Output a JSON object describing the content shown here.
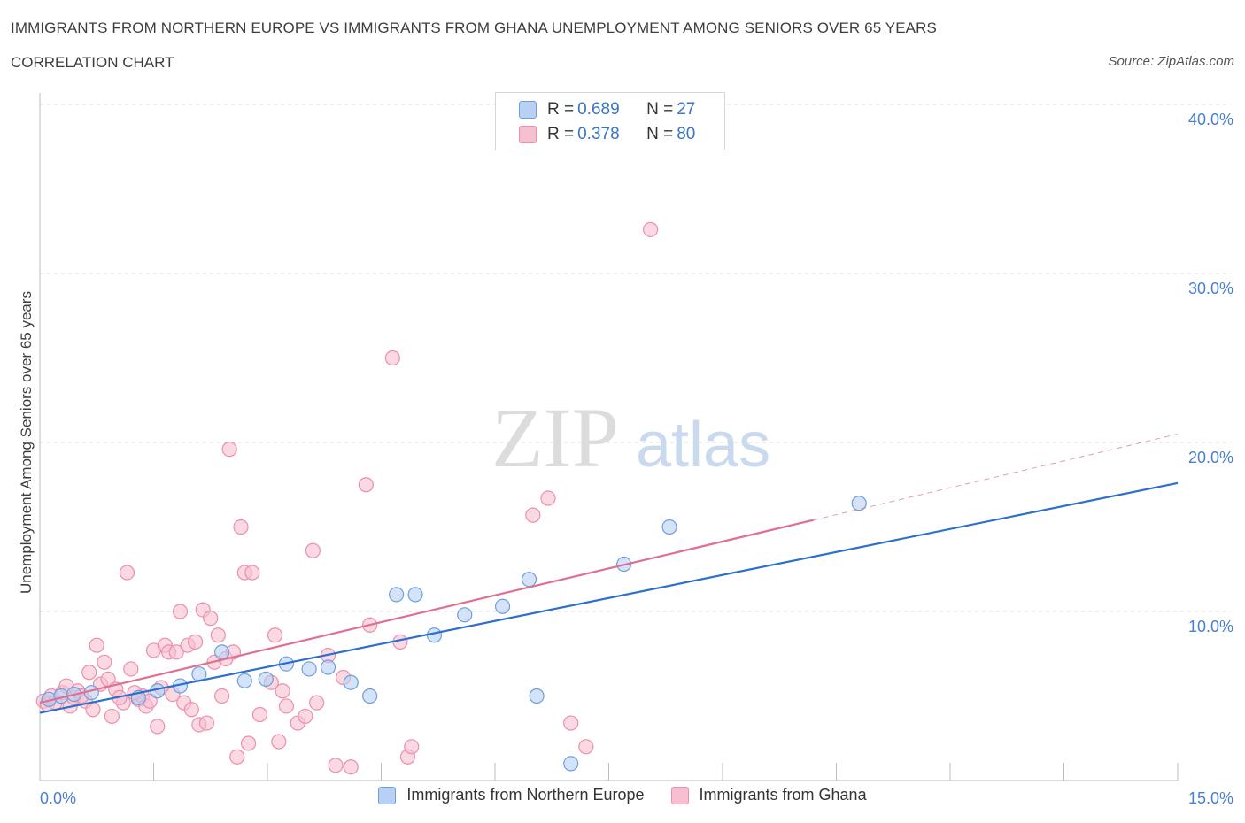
{
  "header": {
    "title": "IMMIGRANTS FROM NORTHERN EUROPE VS IMMIGRANTS FROM GHANA UNEMPLOYMENT AMONG SENIORS OVER 65 YEARS",
    "subtitle": "CORRELATION CHART",
    "source": "Source: ZipAtlas.com"
  },
  "watermark": {
    "zip": "ZIP",
    "atlas": "atlas"
  },
  "legend": {
    "blue": {
      "r_label": "R = ",
      "r_value": "0.689",
      "n_label": "N = ",
      "n_value": "27"
    },
    "pink": {
      "r_label": "R = ",
      "r_value": "0.378",
      "n_label": "N = ",
      "n_value": "80"
    }
  },
  "colors": {
    "blue_fill": "#b7d0f3",
    "blue_stroke": "#6f9ede",
    "blue_line": "#2c6fcd",
    "pink_fill": "#f7c0d1",
    "pink_stroke": "#ec8fab",
    "pink_line": "#e0708f",
    "grid": "#dedede",
    "tick_label": "#4a7fd0"
  },
  "chart_data": {
    "type": "scatter",
    "title": "IMMIGRANTS FROM NORTHERN EUROPE VS IMMIGRANTS FROM GHANA UNEMPLOYMENT AMONG SENIORS OVER 65 YEARS",
    "xlabel": "",
    "ylabel": "Unemployment Among Seniors over 65 years",
    "xlim": [
      0,
      15
    ],
    "ylim": [
      0,
      40
    ],
    "x_tick_labels": [
      "0.0%",
      "15.0%"
    ],
    "y_ticks": [
      10,
      20,
      30,
      40
    ],
    "y_tick_labels": [
      "10.0%",
      "20.0%",
      "30.0%",
      "40.0%"
    ],
    "series": [
      {
        "name": "Immigrants from Northern Europe",
        "color": "blue",
        "R": 0.689,
        "N": 27,
        "trend": {
          "x0": 0,
          "y0": 4.0,
          "x1": 15,
          "y1": 17.6,
          "solid_to": 15
        },
        "points": [
          [
            0.12,
            4.8
          ],
          [
            0.28,
            5.0
          ],
          [
            0.45,
            5.1
          ],
          [
            0.68,
            5.2
          ],
          [
            1.3,
            4.9
          ],
          [
            1.55,
            5.3
          ],
          [
            1.85,
            5.6
          ],
          [
            2.1,
            6.3
          ],
          [
            2.4,
            7.6
          ],
          [
            2.7,
            5.9
          ],
          [
            2.98,
            6.0
          ],
          [
            3.25,
            6.9
          ],
          [
            3.55,
            6.6
          ],
          [
            3.8,
            6.7
          ],
          [
            4.1,
            5.8
          ],
          [
            4.35,
            5.0
          ],
          [
            4.7,
            11.0
          ],
          [
            4.95,
            11.0
          ],
          [
            5.2,
            8.6
          ],
          [
            5.6,
            9.8
          ],
          [
            6.1,
            10.3
          ],
          [
            6.45,
            11.9
          ],
          [
            6.55,
            5.0
          ],
          [
            7.0,
            1.0
          ],
          [
            7.7,
            12.8
          ],
          [
            8.3,
            15.0
          ],
          [
            10.8,
            16.4
          ]
        ]
      },
      {
        "name": "Immigrants from Ghana",
        "color": "pink",
        "R": 0.378,
        "N": 80,
        "trend": {
          "x0": 0,
          "y0": 4.6,
          "x1": 15,
          "y1": 20.5,
          "solid_to": 10.2
        },
        "points": [
          [
            0.05,
            4.7
          ],
          [
            0.1,
            4.5
          ],
          [
            0.15,
            5.0
          ],
          [
            0.2,
            4.6
          ],
          [
            0.3,
            5.2
          ],
          [
            0.35,
            5.6
          ],
          [
            0.4,
            4.4
          ],
          [
            0.45,
            4.9
          ],
          [
            0.5,
            5.3
          ],
          [
            0.6,
            4.7
          ],
          [
            0.65,
            6.4
          ],
          [
            0.7,
            4.2
          ],
          [
            0.75,
            8.0
          ],
          [
            0.8,
            5.7
          ],
          [
            0.85,
            7.0
          ],
          [
            0.9,
            6.0
          ],
          [
            0.95,
            3.8
          ],
          [
            1.0,
            5.4
          ],
          [
            1.1,
            4.6
          ],
          [
            1.15,
            12.3
          ],
          [
            1.2,
            6.6
          ],
          [
            1.3,
            4.8
          ],
          [
            1.35,
            5.0
          ],
          [
            1.4,
            4.4
          ],
          [
            1.45,
            4.7
          ],
          [
            1.5,
            7.7
          ],
          [
            1.55,
            3.2
          ],
          [
            1.6,
            5.5
          ],
          [
            1.65,
            8.0
          ],
          [
            1.7,
            7.6
          ],
          [
            1.75,
            5.1
          ],
          [
            1.8,
            7.6
          ],
          [
            1.85,
            10.0
          ],
          [
            1.9,
            4.6
          ],
          [
            1.95,
            8.0
          ],
          [
            2.0,
            4.2
          ],
          [
            2.05,
            8.2
          ],
          [
            2.1,
            3.3
          ],
          [
            2.15,
            10.1
          ],
          [
            2.2,
            3.4
          ],
          [
            2.25,
            9.6
          ],
          [
            2.3,
            7.0
          ],
          [
            2.35,
            8.6
          ],
          [
            2.4,
            5.0
          ],
          [
            2.45,
            7.2
          ],
          [
            2.5,
            19.6
          ],
          [
            2.55,
            7.6
          ],
          [
            2.6,
            1.4
          ],
          [
            2.65,
            15.0
          ],
          [
            2.7,
            12.3
          ],
          [
            2.75,
            2.2
          ],
          [
            2.8,
            12.3
          ],
          [
            2.9,
            3.9
          ],
          [
            3.05,
            5.8
          ],
          [
            3.1,
            8.6
          ],
          [
            3.15,
            2.3
          ],
          [
            3.2,
            5.3
          ],
          [
            3.25,
            4.4
          ],
          [
            3.4,
            3.4
          ],
          [
            3.5,
            3.8
          ],
          [
            3.6,
            13.6
          ],
          [
            3.65,
            4.6
          ],
          [
            3.8,
            7.4
          ],
          [
            3.9,
            0.9
          ],
          [
            4.0,
            6.1
          ],
          [
            4.1,
            0.8
          ],
          [
            4.3,
            17.5
          ],
          [
            4.35,
            9.2
          ],
          [
            4.65,
            25.0
          ],
          [
            4.75,
            8.2
          ],
          [
            4.85,
            1.4
          ],
          [
            4.9,
            2.0
          ],
          [
            6.5,
            15.7
          ],
          [
            6.7,
            16.7
          ],
          [
            7.0,
            3.4
          ],
          [
            7.2,
            2.0
          ],
          [
            8.05,
            32.6
          ],
          [
            1.25,
            5.2
          ],
          [
            0.55,
            5.0
          ],
          [
            1.05,
            4.9
          ]
        ]
      }
    ]
  },
  "bottom_legend": {
    "blue_label": "Immigrants from Northern Europe",
    "pink_label": "Immigrants from Ghana"
  }
}
